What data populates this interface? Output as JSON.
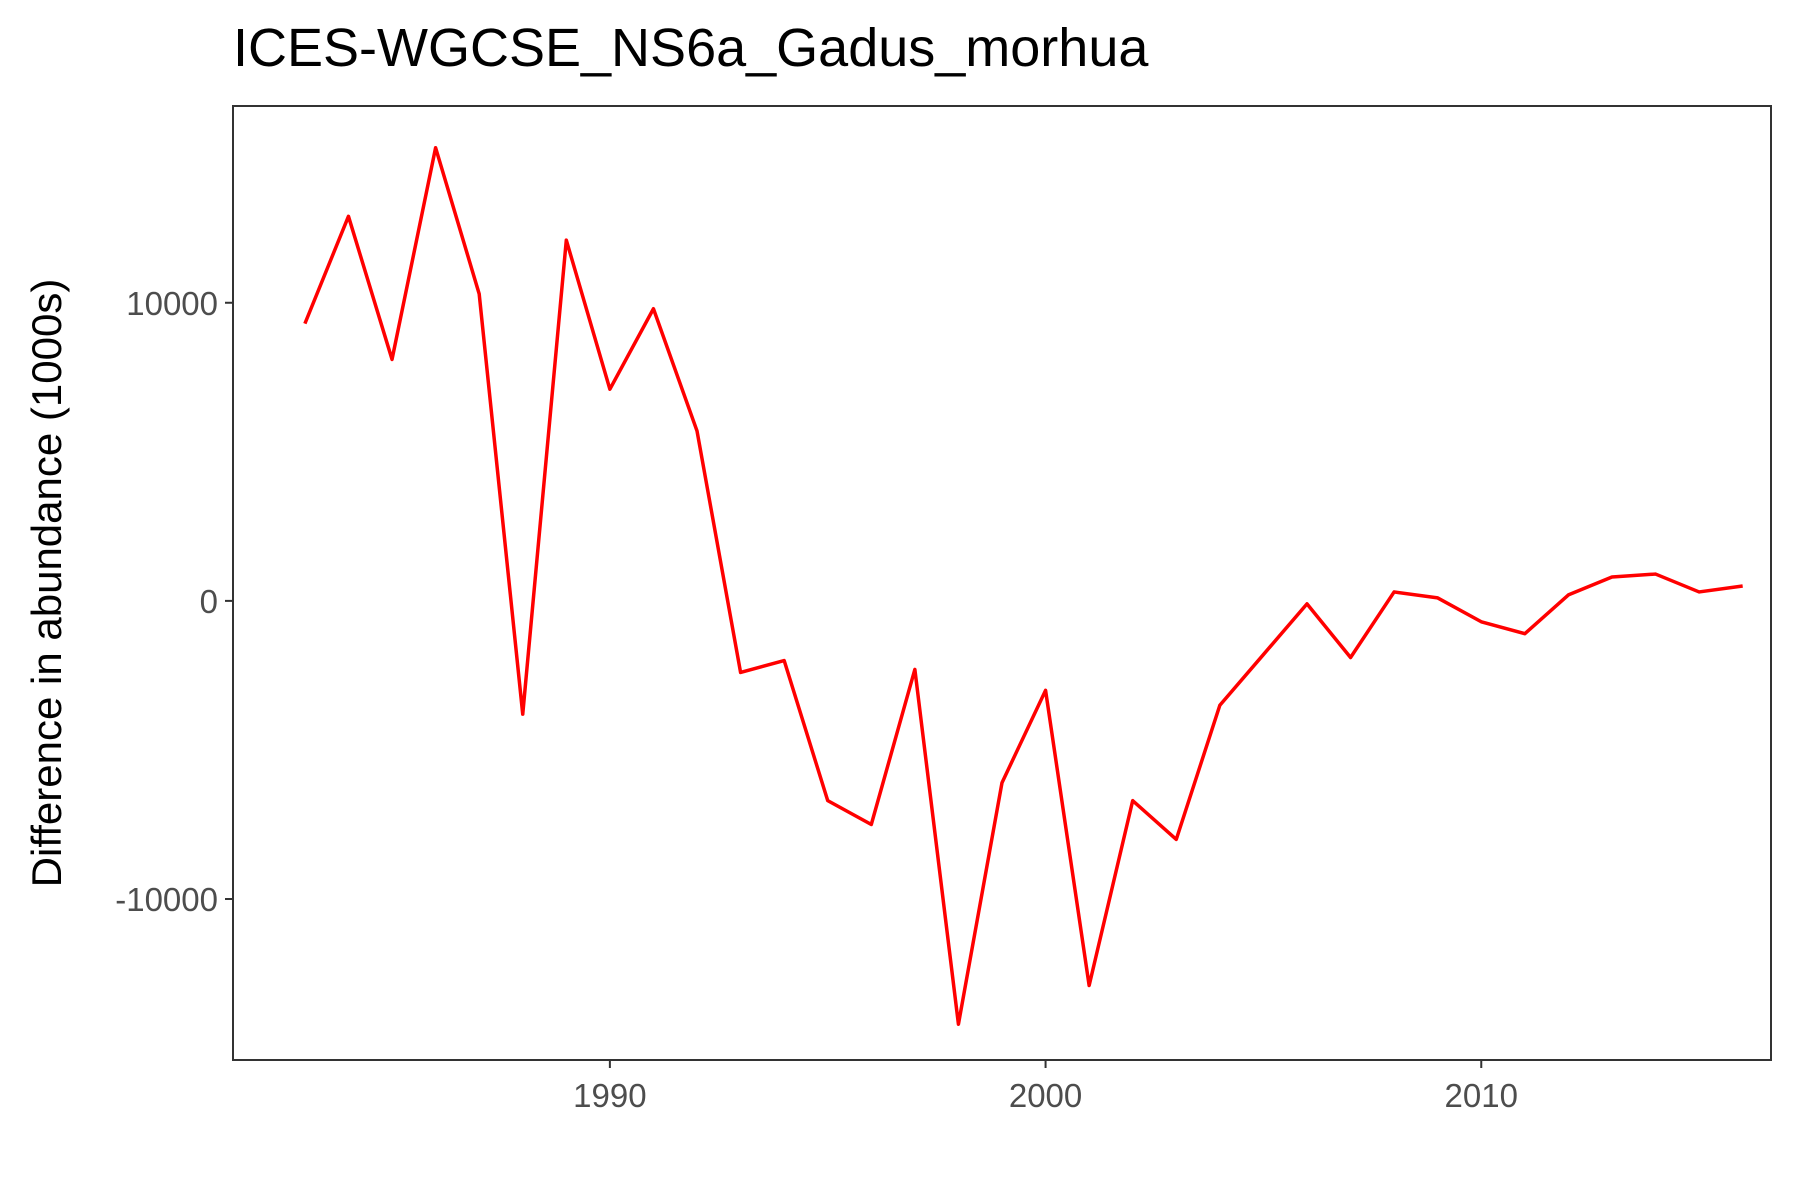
{
  "chart_data": {
    "type": "line",
    "title": "ICES-WGCSE_NS6a_Gadus_morhua",
    "xlabel": "",
    "ylabel": "Difference in abundance (1000s)",
    "xlim": [
      1981.35,
      2016.65
    ],
    "ylim": [
      -15400,
      16600
    ],
    "xticks": [
      1990,
      2000,
      2010
    ],
    "yticks": [
      -10000,
      0,
      10000
    ],
    "xtick_labels": [
      "1990",
      "2000",
      "2010"
    ],
    "ytick_labels": [
      "-10000",
      "0",
      "10000"
    ],
    "grid": false,
    "legend": "none",
    "series": [
      {
        "color": "#ff0000",
        "x": [
          1983,
          1984,
          1985,
          1986,
          1987,
          1988,
          1989,
          1990,
          1991,
          1992,
          1993,
          1994,
          1995,
          1996,
          1997,
          1998,
          1999,
          2000,
          2001,
          2002,
          2003,
          2004,
          2005,
          2006,
          2007,
          2008,
          2009,
          2010,
          2011,
          2012,
          2013,
          2014,
          2015,
          2016
        ],
        "y": [
          9300,
          12900,
          8100,
          15200,
          10300,
          -3800,
          12100,
          7100,
          9800,
          5700,
          -2400,
          -2000,
          -6700,
          -7500,
          -2300,
          -14200,
          -6100,
          -3000,
          -12900,
          -6700,
          -8000,
          -3500,
          -1800,
          -100,
          -1900,
          300,
          100,
          -700,
          -1100,
          200,
          800,
          900,
          300,
          500
        ]
      }
    ]
  }
}
